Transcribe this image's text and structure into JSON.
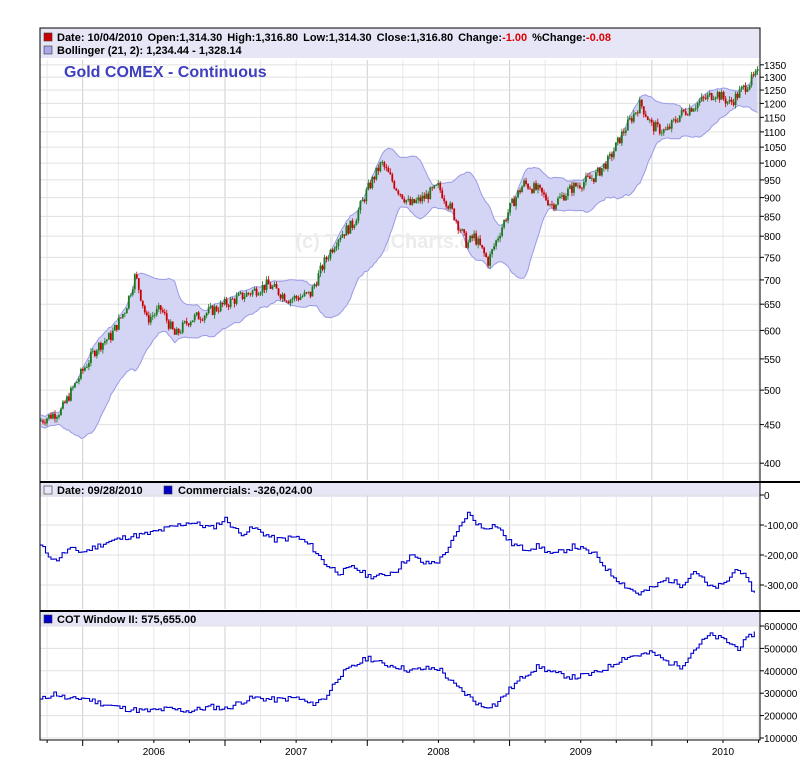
{
  "panel1": {
    "legend_line1": {
      "date": "Date: 10/04/2010",
      "open": "Open:1,314.30",
      "high": "High:1,316.80",
      "low": "Low:1,314.30",
      "close": "Close:1,316.80",
      "change_label": "Change:",
      "change_value": "-1.00",
      "pct_change_label": "%Change:",
      "pct_change_value": "-0.08"
    },
    "legend_line2": "Bollinger (21, 2): 1,234.44 - 1,328.14",
    "title": "Gold COMEX - Continuous",
    "watermark": "(c) TimingCharts.com"
  },
  "panel2": {
    "legend_date": "Date: 09/28/2010",
    "legend_series": "Commercials: -326,024.00"
  },
  "panel3": {
    "legend_series": "COT Window II: 575,655.00"
  },
  "colors": {
    "up_candle": "#1a7a1a",
    "down_candle": "#cc0000",
    "bollinger_fill": "#d4d4f4",
    "bollinger_line": "#9a9ae8",
    "series_line": "#0000cc",
    "title": "#3e3ebf",
    "negative_change": "#dd0000"
  },
  "chart_data": [
    {
      "type": "candlestick",
      "title": "Gold COMEX - Continuous",
      "x_ticks": [
        "2006",
        "2007",
        "2008",
        "2009",
        "2010"
      ],
      "y_scale": "log",
      "ylim": [
        380,
        1370
      ],
      "y_ticks": [
        400,
        450,
        500,
        550,
        600,
        650,
        700,
        750,
        800,
        850,
        900,
        950,
        1000,
        1050,
        1100,
        1150,
        1200,
        1250,
        1300,
        1350
      ],
      "grid": true,
      "last": {
        "date": "10/04/2010",
        "open": 1314.3,
        "high": 1316.8,
        "low": 1314.3,
        "close": 1316.8,
        "change": -1.0,
        "pct_change": -0.08
      },
      "bollinger": {
        "period": 21,
        "stddev": 2,
        "lower": 1234.44,
        "upper": 1328.14
      },
      "close_path": {
        "x": [
          2005.7,
          2005.85,
          2006.0,
          2006.1,
          2006.2,
          2006.3,
          2006.37,
          2006.45,
          2006.55,
          2006.65,
          2006.75,
          2006.85,
          2007.0,
          2007.15,
          2007.3,
          2007.45,
          2007.6,
          2007.7,
          2007.8,
          2007.9,
          2008.0,
          2008.1,
          2008.2,
          2008.3,
          2008.4,
          2008.5,
          2008.6,
          2008.7,
          2008.75,
          2008.85,
          2009.0,
          2009.1,
          2009.2,
          2009.3,
          2009.45,
          2009.6,
          2009.7,
          2009.8,
          2009.92,
          2010.0,
          2010.1,
          2010.2,
          2010.35,
          2010.45,
          2010.55,
          2010.65,
          2010.75
        ],
        "y": [
          455,
          470,
          530,
          570,
          590,
          640,
          710,
          620,
          640,
          590,
          620,
          630,
          650,
          670,
          690,
          660,
          670,
          740,
          800,
          830,
          920,
          1000,
          930,
          880,
          900,
          930,
          860,
          780,
          800,
          740,
          870,
          940,
          920,
          880,
          930,
          960,
          1010,
          1100,
          1200,
          1120,
          1100,
          1160,
          1210,
          1240,
          1200,
          1260,
          1316.8
        ]
      }
    },
    {
      "type": "line",
      "series": [
        {
          "name": "Commercials",
          "last": -326024.0
        }
      ],
      "y_ticks": [
        "0",
        "-100,00",
        "-200,00",
        "-300,00"
      ],
      "ylim": [
        -380000,
        0
      ],
      "x": [
        2005.7,
        2005.8,
        2005.9,
        2006.0,
        2006.15,
        2006.3,
        2006.45,
        2006.6,
        2006.75,
        2006.9,
        2007.0,
        2007.1,
        2007.2,
        2007.35,
        2007.5,
        2007.6,
        2007.7,
        2007.8,
        2007.9,
        2008.0,
        2008.1,
        2008.2,
        2008.3,
        2008.4,
        2008.5,
        2008.6,
        2008.7,
        2008.8,
        2008.9,
        2009.0,
        2009.1,
        2009.2,
        2009.3,
        2009.45,
        2009.6,
        2009.7,
        2009.8,
        2009.9,
        2010.0,
        2010.1,
        2010.2,
        2010.3,
        2010.4,
        2010.5,
        2010.6,
        2010.72
      ],
      "values": [
        -170000,
        -220000,
        -180000,
        -190000,
        -160000,
        -140000,
        -130000,
        -110000,
        -90000,
        -110000,
        -80000,
        -130000,
        -110000,
        -150000,
        -140000,
        -170000,
        -230000,
        -260000,
        -240000,
        -270000,
        -270000,
        -250000,
        -200000,
        -230000,
        -220000,
        -150000,
        -60000,
        -110000,
        -100000,
        -160000,
        -180000,
        -170000,
        -200000,
        -170000,
        -200000,
        -260000,
        -300000,
        -330000,
        -310000,
        -280000,
        -300000,
        -250000,
        -310000,
        -300000,
        -240000,
        -326024
      ]
    },
    {
      "type": "line",
      "series": [
        {
          "name": "COT Window II",
          "last": 575655.0
        }
      ],
      "y_ticks": [
        "100000",
        "200000",
        "300000",
        "400000",
        "500000",
        "600000"
      ],
      "ylim": [
        100000,
        600000
      ],
      "x": [
        2005.7,
        2005.8,
        2005.9,
        2006.0,
        2006.15,
        2006.3,
        2006.45,
        2006.6,
        2006.75,
        2006.9,
        2007.0,
        2007.1,
        2007.2,
        2007.35,
        2007.5,
        2007.6,
        2007.7,
        2007.8,
        2007.9,
        2008.0,
        2008.1,
        2008.2,
        2008.3,
        2008.4,
        2008.5,
        2008.6,
        2008.7,
        2008.8,
        2008.9,
        2009.0,
        2009.1,
        2009.2,
        2009.3,
        2009.45,
        2009.6,
        2009.7,
        2009.8,
        2009.9,
        2010.0,
        2010.1,
        2010.2,
        2010.3,
        2010.4,
        2010.5,
        2010.6,
        2010.72
      ],
      "values": [
        270000,
        300000,
        270000,
        280000,
        250000,
        230000,
        220000,
        230000,
        220000,
        240000,
        230000,
        260000,
        280000,
        270000,
        280000,
        250000,
        280000,
        380000,
        420000,
        460000,
        430000,
        420000,
        400000,
        410000,
        410000,
        340000,
        290000,
        240000,
        250000,
        320000,
        380000,
        420000,
        390000,
        370000,
        390000,
        420000,
        460000,
        470000,
        480000,
        440000,
        420000,
        500000,
        560000,
        540000,
        500000,
        575655
      ]
    }
  ]
}
